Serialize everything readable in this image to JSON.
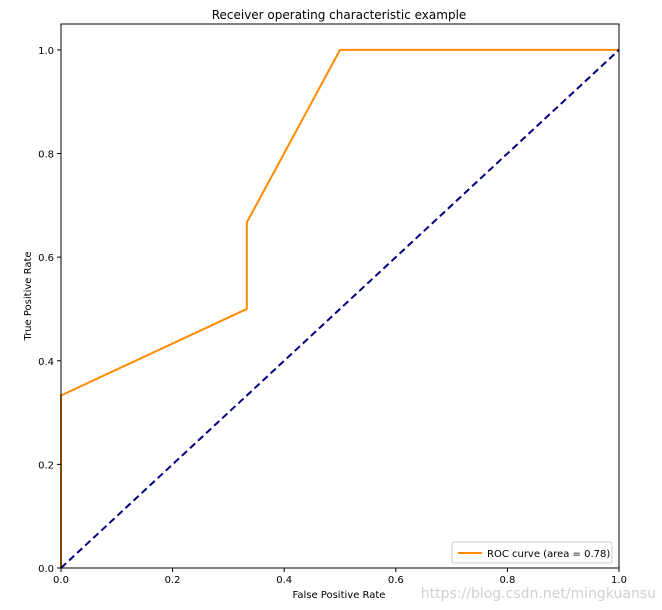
{
  "chart_data": {
    "type": "line",
    "title": "Receiver operating characteristic example",
    "xlabel": "False Positive Rate",
    "ylabel": "True Positive Rate",
    "xlim": [
      0.0,
      1.0
    ],
    "ylim": [
      0.0,
      1.05
    ],
    "xticks": [
      0.0,
      0.2,
      0.4,
      0.6,
      0.8,
      1.0
    ],
    "yticks": [
      0.0,
      0.2,
      0.4,
      0.6,
      0.8,
      1.0
    ],
    "xtick_labels": [
      "0.0",
      "0.2",
      "0.4",
      "0.6",
      "0.8",
      "1.0"
    ],
    "ytick_labels": [
      "0.0",
      "0.2",
      "0.4",
      "0.6",
      "0.8",
      "1.0"
    ],
    "grid": false,
    "legend_position": "lower-right",
    "series": [
      {
        "name": "ROC curve (area = 0.78)",
        "color": "#ff8c00",
        "style": "solid",
        "x": [
          0.0,
          0.0,
          0.333,
          0.333,
          0.5,
          1.0
        ],
        "y": [
          0.0,
          0.333,
          0.5,
          0.667,
          1.0,
          1.0
        ]
      },
      {
        "color": "#000080",
        "style": "dashed",
        "x": [
          0.0,
          1.0
        ],
        "y": [
          0.0,
          1.0
        ]
      }
    ]
  },
  "watermark": "https://blog.csdn.net/mingkuansu"
}
